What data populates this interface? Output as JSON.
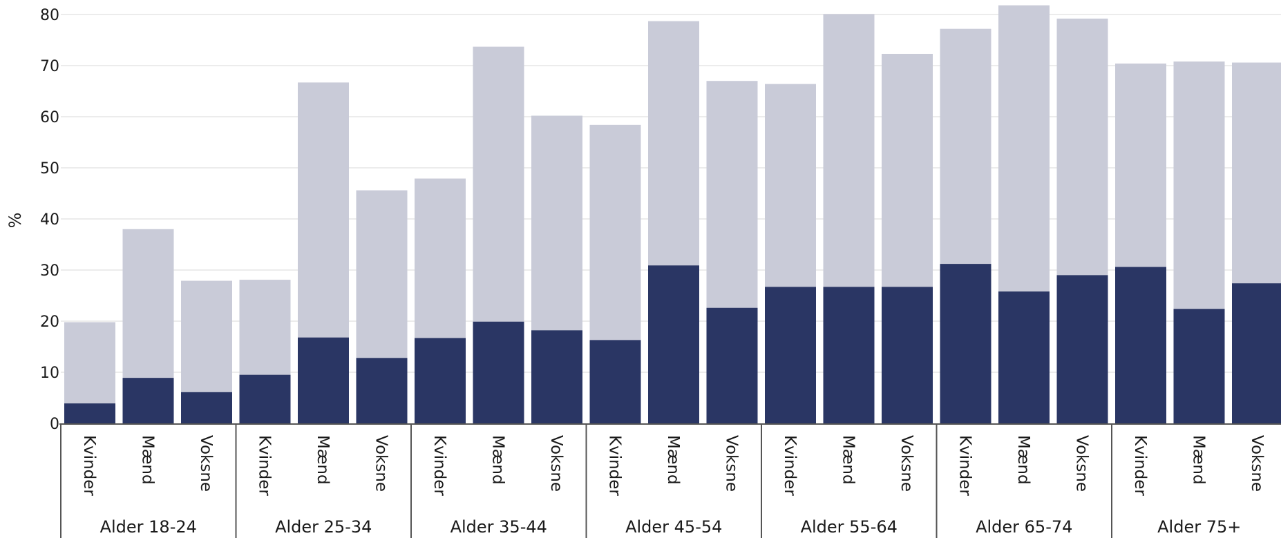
{
  "chart_data": {
    "type": "bar",
    "stacked": false,
    "overlapped": true,
    "ylabel": "%",
    "ylim": [
      0,
      80
    ],
    "yticks": [
      0,
      10,
      20,
      30,
      40,
      50,
      60,
      70,
      80
    ],
    "grid": true,
    "groups": [
      "Alder 18-24",
      "Alder 25-34",
      "Alder 35-44",
      "Alder 45-54",
      "Alder 55-64",
      "Alder 65-74",
      "Alder 75+"
    ],
    "categories": [
      "Kvinder",
      "Mænd",
      "Voksne"
    ],
    "series": [
      {
        "color": "#c9cbd8",
        "values": [
          [
            19.8,
            38.0,
            27.9
          ],
          [
            28.1,
            66.7,
            45.6
          ],
          [
            47.9,
            73.7,
            60.2
          ],
          [
            58.4,
            78.7,
            67.0
          ],
          [
            66.4,
            80.1,
            72.3
          ],
          [
            77.2,
            81.8,
            79.2
          ],
          [
            70.4,
            70.8,
            70.6
          ]
        ]
      },
      {
        "color": "#2a3664",
        "values": [
          [
            3.9,
            8.9,
            6.1
          ],
          [
            9.5,
            16.8,
            12.8
          ],
          [
            16.7,
            19.9,
            18.2
          ],
          [
            16.3,
            30.9,
            22.6
          ],
          [
            26.7,
            26.7,
            26.7
          ],
          [
            31.2,
            25.8,
            29.0
          ],
          [
            30.6,
            22.4,
            27.4
          ]
        ]
      }
    ]
  }
}
